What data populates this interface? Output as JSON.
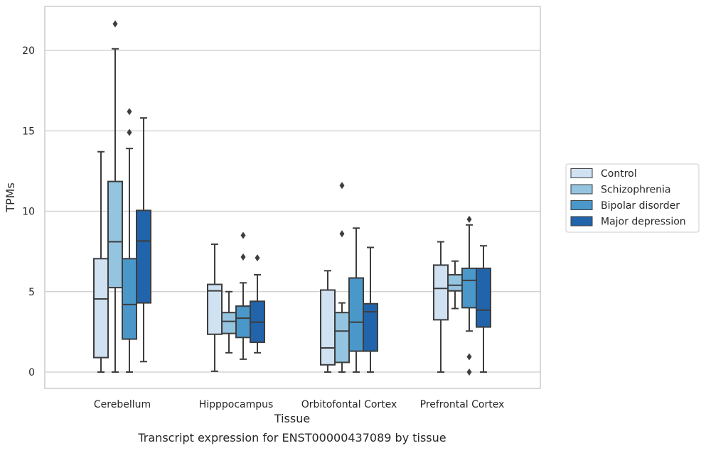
{
  "chart_data": {
    "type": "box",
    "title": "",
    "caption": "Transcript expression for ENST00000437089 by tissue",
    "xlabel": "Tissue",
    "ylabel": "TPMs",
    "ylim": [
      -1,
      23
    ],
    "yticks": [
      0,
      5,
      10,
      15,
      20
    ],
    "grid": "horizontal",
    "legend_placement": "right",
    "categories": [
      "Cerebellum",
      "Hipppocampus",
      "Orbitofontal Cortex",
      "Prefrontal Cortex"
    ],
    "series": [
      {
        "name": "Control",
        "color": "#d0e1f2",
        "boxes": [
          {
            "whislo": 0.0,
            "q1": 0.9,
            "med": 4.55,
            "q3": 7.05,
            "whishi": 13.7,
            "fliers": []
          },
          {
            "whislo": 0.05,
            "q1": 2.35,
            "med": 5.05,
            "q3": 5.45,
            "whishi": 7.95,
            "fliers": []
          },
          {
            "whislo": 0.0,
            "q1": 0.45,
            "med": 1.5,
            "q3": 5.1,
            "whishi": 6.3,
            "fliers": []
          },
          {
            "whislo": 0.0,
            "q1": 3.25,
            "med": 5.2,
            "q3": 6.65,
            "whishi": 8.1,
            "fliers": []
          }
        ]
      },
      {
        "name": "Schizophrenia",
        "color": "#94c4df",
        "boxes": [
          {
            "whislo": 0.0,
            "q1": 5.25,
            "med": 8.1,
            "q3": 11.85,
            "whishi": 20.1,
            "fliers": [
              21.65
            ]
          },
          {
            "whislo": 1.2,
            "q1": 2.4,
            "med": 3.15,
            "q3": 3.7,
            "whishi": 5.0,
            "fliers": []
          },
          {
            "whislo": 0.0,
            "q1": 0.6,
            "med": 2.55,
            "q3": 3.7,
            "whishi": 4.3,
            "fliers": [
              11.6,
              8.6
            ]
          },
          {
            "whislo": 3.95,
            "q1": 5.05,
            "med": 5.4,
            "q3": 6.05,
            "whishi": 6.9,
            "fliers": []
          }
        ]
      },
      {
        "name": "Bipolar disorder",
        "color": "#4a98c9",
        "boxes": [
          {
            "whislo": 0.0,
            "q1": 2.05,
            "med": 4.2,
            "q3": 7.05,
            "whishi": 13.9,
            "fliers": [
              16.2,
              14.9
            ]
          },
          {
            "whislo": 0.8,
            "q1": 2.15,
            "med": 3.35,
            "q3": 4.1,
            "whishi": 5.55,
            "fliers": [
              8.5,
              7.15
            ]
          },
          {
            "whislo": 0.0,
            "q1": 1.3,
            "med": 3.1,
            "q3": 5.85,
            "whishi": 8.95,
            "fliers": []
          },
          {
            "whislo": 2.55,
            "q1": 4.0,
            "med": 5.7,
            "q3": 6.45,
            "whishi": 9.15,
            "fliers": [
              9.5,
              0.95,
              0.0
            ]
          }
        ]
      },
      {
        "name": "Major depression",
        "color": "#2164ab",
        "boxes": [
          {
            "whislo": 0.65,
            "q1": 4.3,
            "med": 8.15,
            "q3": 10.05,
            "whishi": 15.8,
            "fliers": []
          },
          {
            "whislo": 1.2,
            "q1": 1.85,
            "med": 3.1,
            "q3": 4.4,
            "whishi": 6.05,
            "fliers": [
              7.1
            ]
          },
          {
            "whislo": 0.0,
            "q1": 1.3,
            "med": 3.75,
            "q3": 4.25,
            "whishi": 7.75,
            "fliers": []
          },
          {
            "whislo": 0.0,
            "q1": 2.8,
            "med": 3.85,
            "q3": 6.45,
            "whishi": 7.85,
            "fliers": []
          }
        ]
      }
    ]
  }
}
